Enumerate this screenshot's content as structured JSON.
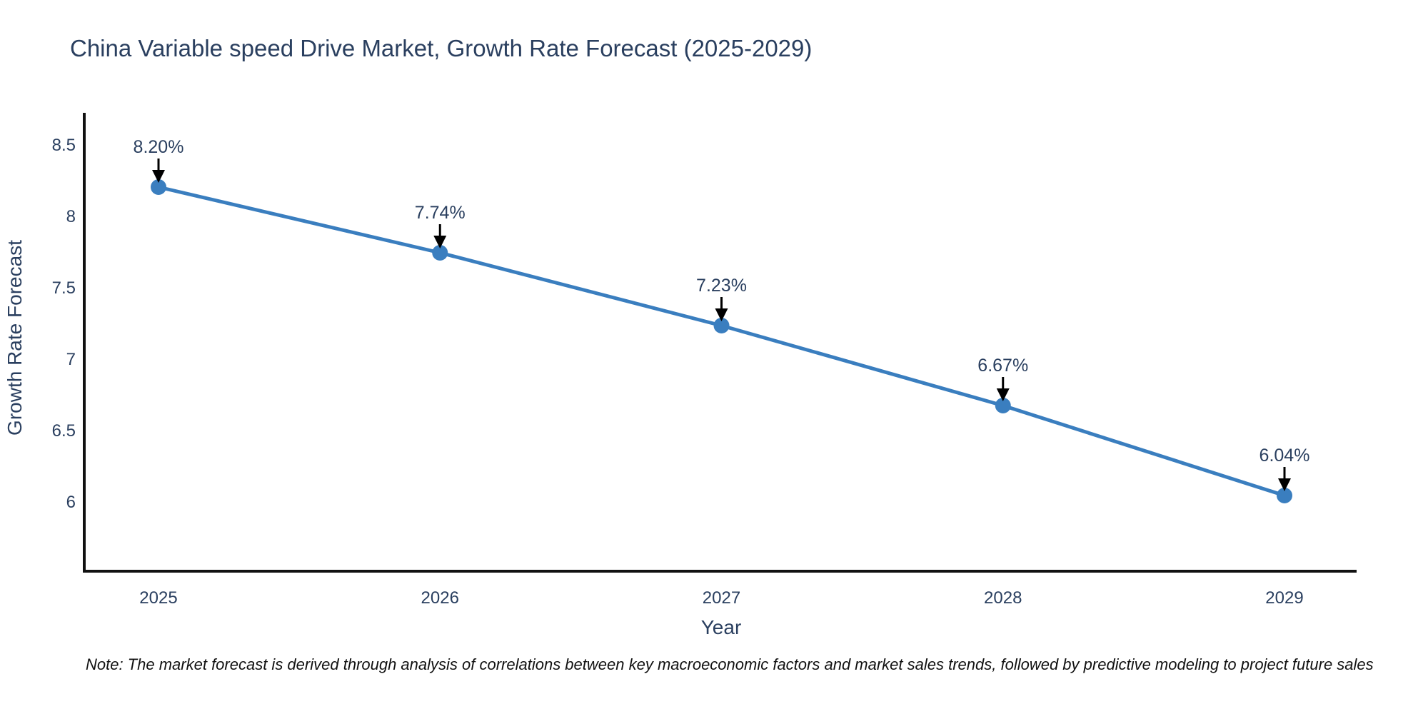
{
  "chart_data": {
    "type": "line",
    "title": "China Variable speed Drive Market, Growth Rate Forecast (2025-2029)",
    "xlabel": "Year",
    "ylabel": "Growth Rate Forecast",
    "categories": [
      "2025",
      "2026",
      "2027",
      "2028",
      "2029"
    ],
    "values": [
      8.2,
      7.74,
      7.23,
      6.67,
      6.04
    ],
    "point_labels": [
      "8.20%",
      "7.74%",
      "7.23%",
      "6.67%",
      "6.04%"
    ],
    "yticks": [
      "8.5",
      "8",
      "7.5",
      "7",
      "6.5",
      "6"
    ],
    "ytick_values": [
      8.5,
      8,
      7.5,
      7,
      6.5,
      6
    ],
    "ylim": [
      5.51,
      8.71
    ],
    "grid": false,
    "legend": "none",
    "colors": {
      "line": "#3a7ebf",
      "marker": "#3a7ebf",
      "arrow": "#000000",
      "axis_line": "#111111",
      "text": "#2a3f5f"
    }
  },
  "note": "Note: The market forecast is derived through analysis of correlations between key macroeconomic factors and market sales trends, followed by predictive modeling to project future sales"
}
